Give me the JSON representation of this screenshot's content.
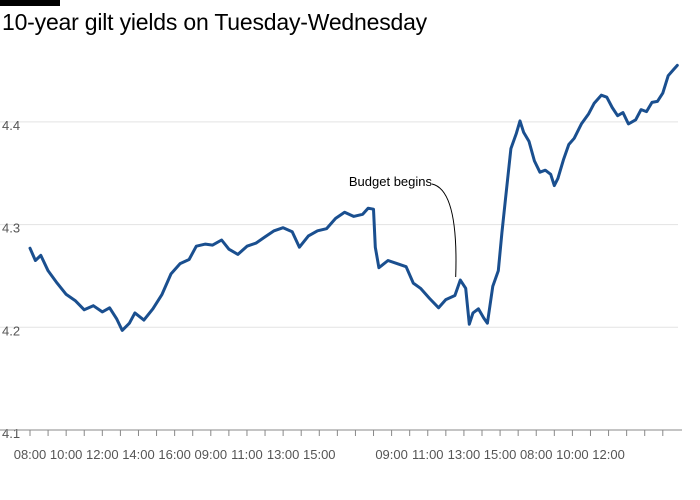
{
  "chart_data": {
    "type": "line",
    "title": "10-year gilt yields on Tuesday-Wednesday",
    "subtitle": "",
    "xlabel": "",
    "ylabel": "",
    "ylim": [
      4.1,
      4.47
    ],
    "yticks": [
      4.1,
      4.2,
      4.3,
      4.4
    ],
    "ytick_labels": [
      "4.1",
      "4.2",
      "4.3",
      "4.4"
    ],
    "grid": true,
    "line_color": "#1a4f8f",
    "grid_color": "#e3e3e3",
    "axis_color": "#888888",
    "x_tick_labels": [
      "08:00",
      "10:00",
      "12:00",
      "14:00",
      "16:00",
      "09:00",
      "11:00",
      "13:00",
      "15:00",
      "09:00",
      "11:00",
      "13:00",
      "15:00",
      "08:00",
      "10:00",
      "12:00"
    ],
    "x_tick_index": [
      0,
      2,
      4,
      6,
      8,
      10,
      12,
      14,
      16,
      20,
      22,
      24,
      26,
      28,
      30,
      32
    ],
    "x_minor_ticks": 35,
    "annotation": {
      "text": "Budget begins",
      "at_index": 23.6,
      "y": 4.247
    },
    "series": [
      {
        "points": [
          [
            0.0,
            4.277
          ],
          [
            0.3,
            4.265
          ],
          [
            0.6,
            4.27
          ],
          [
            1.0,
            4.255
          ],
          [
            1.5,
            4.243
          ],
          [
            2.0,
            4.232
          ],
          [
            2.5,
            4.226
          ],
          [
            3.0,
            4.217
          ],
          [
            3.5,
            4.221
          ],
          [
            4.0,
            4.215
          ],
          [
            4.4,
            4.219
          ],
          [
            4.8,
            4.208
          ],
          [
            5.1,
            4.197
          ],
          [
            5.5,
            4.204
          ],
          [
            5.8,
            4.214
          ],
          [
            6.3,
            4.207
          ],
          [
            6.8,
            4.218
          ],
          [
            7.3,
            4.232
          ],
          [
            7.8,
            4.252
          ],
          [
            8.3,
            4.262
          ],
          [
            8.8,
            4.266
          ],
          [
            9.2,
            4.279
          ],
          [
            9.7,
            4.281
          ],
          [
            10.1,
            4.28
          ],
          [
            10.6,
            4.285
          ],
          [
            11.0,
            4.276
          ],
          [
            11.5,
            4.271
          ],
          [
            12.0,
            4.279
          ],
          [
            12.5,
            4.282
          ],
          [
            13.0,
            4.288
          ],
          [
            13.5,
            4.294
          ],
          [
            14.0,
            4.297
          ],
          [
            14.5,
            4.293
          ],
          [
            14.9,
            4.278
          ],
          [
            15.4,
            4.289
          ],
          [
            15.9,
            4.294
          ],
          [
            16.4,
            4.296
          ],
          [
            16.9,
            4.306
          ],
          [
            17.4,
            4.312
          ],
          [
            17.9,
            4.308
          ],
          [
            18.4,
            4.31
          ],
          [
            18.7,
            4.316
          ],
          [
            19.0,
            4.315
          ],
          [
            19.1,
            4.278
          ],
          [
            19.3,
            4.258
          ],
          [
            19.8,
            4.265
          ],
          [
            20.3,
            4.262
          ],
          [
            20.8,
            4.259
          ],
          [
            21.2,
            4.243
          ],
          [
            21.6,
            4.238
          ],
          [
            22.1,
            4.228
          ],
          [
            22.6,
            4.219
          ],
          [
            23.0,
            4.227
          ],
          [
            23.5,
            4.231
          ],
          [
            23.8,
            4.246
          ],
          [
            24.1,
            4.238
          ],
          [
            24.3,
            4.203
          ],
          [
            24.5,
            4.214
          ],
          [
            24.8,
            4.218
          ],
          [
            25.1,
            4.209
          ],
          [
            25.3,
            4.204
          ],
          [
            25.6,
            4.24
          ],
          [
            25.9,
            4.255
          ],
          [
            26.1,
            4.292
          ],
          [
            26.3,
            4.325
          ],
          [
            26.6,
            4.374
          ],
          [
            26.9,
            4.389
          ],
          [
            27.1,
            4.401
          ],
          [
            27.3,
            4.39
          ],
          [
            27.6,
            4.381
          ],
          [
            27.9,
            4.362
          ],
          [
            28.2,
            4.351
          ],
          [
            28.5,
            4.353
          ],
          [
            28.8,
            4.349
          ],
          [
            29.0,
            4.338
          ],
          [
            29.2,
            4.345
          ],
          [
            29.5,
            4.363
          ],
          [
            29.8,
            4.378
          ],
          [
            30.1,
            4.384
          ],
          [
            30.5,
            4.398
          ],
          [
            30.9,
            4.408
          ],
          [
            31.2,
            4.418
          ],
          [
            31.6,
            4.426
          ],
          [
            31.9,
            4.424
          ],
          [
            32.2,
            4.414
          ],
          [
            32.5,
            4.406
          ],
          [
            32.8,
            4.409
          ],
          [
            33.1,
            4.398
          ],
          [
            33.5,
            4.402
          ],
          [
            33.8,
            4.412
          ],
          [
            34.1,
            4.41
          ],
          [
            34.4,
            4.419
          ],
          [
            34.7,
            4.42
          ],
          [
            35.0,
            4.428
          ],
          [
            35.3,
            4.445
          ],
          [
            35.6,
            4.451
          ],
          [
            35.8,
            4.455
          ]
        ]
      }
    ]
  }
}
